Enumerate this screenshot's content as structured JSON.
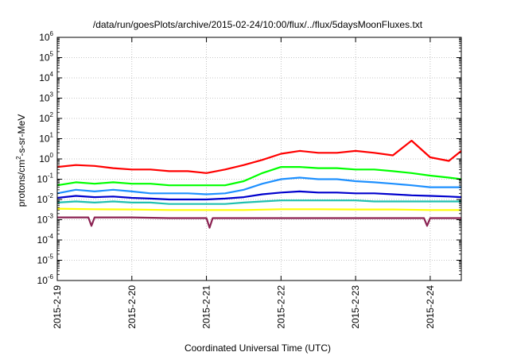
{
  "chart_data": {
    "type": "line",
    "title": "/data/run/goesPlots/archive/2015-02-24/10:00/flux/../flux/5daysMoonFluxes.txt",
    "xlabel": "Coordinated Universal Time (UTC)",
    "ylabel": "protons/cm²-s-sr-MeV",
    "ylabel_parts": {
      "pre": "protons/cm",
      "sup": "2",
      "post": "-s-sr-MeV"
    },
    "y_scale": "log",
    "ylim": [
      1e-06,
      1000000.0
    ],
    "y_ticks": [
      {
        "base": "10",
        "exp": "-6",
        "value": 1e-06
      },
      {
        "base": "10",
        "exp": "-5",
        "value": 1e-05
      },
      {
        "base": "10",
        "exp": "-4",
        "value": 0.0001
      },
      {
        "base": "10",
        "exp": "-3",
        "value": 0.001
      },
      {
        "base": "10",
        "exp": "-2",
        "value": 0.01
      },
      {
        "base": "10",
        "exp": "-1",
        "value": 0.1
      },
      {
        "base": "10",
        "exp": "0",
        "value": 1
      },
      {
        "base": "10",
        "exp": "1",
        "value": 10
      },
      {
        "base": "10",
        "exp": "2",
        "value": 100
      },
      {
        "base": "10",
        "exp": "3",
        "value": 1000
      },
      {
        "base": "10",
        "exp": "4",
        "value": 10000
      },
      {
        "base": "10",
        "exp": "5",
        "value": 100000
      },
      {
        "base": "10",
        "exp": "6",
        "value": 1000000
      }
    ],
    "xlim": [
      "2015-02-19T00:00",
      "2015-02-24T10:00"
    ],
    "x_ticks": [
      "2015-2-19",
      "2015-2-20",
      "2015-2-21",
      "2015-2-22",
      "2015-2-23",
      "2015-2-24"
    ],
    "grid": true,
    "series": [
      {
        "color": "#ff0000",
        "x": [
          "2015-02-19T00:00",
          "2015-02-19T06:00",
          "2015-02-19T12:00",
          "2015-02-19T18:00",
          "2015-02-20T00:00",
          "2015-02-20T06:00",
          "2015-02-20T12:00",
          "2015-02-20T18:00",
          "2015-02-21T00:00",
          "2015-02-21T06:00",
          "2015-02-21T12:00",
          "2015-02-21T18:00",
          "2015-02-22T00:00",
          "2015-02-22T06:00",
          "2015-02-22T12:00",
          "2015-02-22T18:00",
          "2015-02-23T00:00",
          "2015-02-23T06:00",
          "2015-02-23T12:00",
          "2015-02-23T18:00",
          "2015-02-24T00:00",
          "2015-02-24T06:00",
          "2015-02-24T10:00"
        ],
        "values": [
          0.4,
          0.5,
          0.45,
          0.35,
          0.3,
          0.3,
          0.25,
          0.25,
          0.2,
          0.3,
          0.5,
          0.9,
          1.8,
          2.5,
          2.0,
          2.0,
          2.5,
          2.0,
          1.5,
          8.0,
          1.2,
          0.8,
          2.5
        ]
      },
      {
        "color": "#00ff00",
        "x": [
          "2015-02-19T00:00",
          "2015-02-19T06:00",
          "2015-02-19T12:00",
          "2015-02-19T18:00",
          "2015-02-20T00:00",
          "2015-02-20T06:00",
          "2015-02-20T12:00",
          "2015-02-20T18:00",
          "2015-02-21T00:00",
          "2015-02-21T06:00",
          "2015-02-21T12:00",
          "2015-02-21T18:00",
          "2015-02-22T00:00",
          "2015-02-22T06:00",
          "2015-02-22T12:00",
          "2015-02-22T18:00",
          "2015-02-23T00:00",
          "2015-02-23T06:00",
          "2015-02-23T12:00",
          "2015-02-23T18:00",
          "2015-02-24T00:00",
          "2015-02-24T06:00",
          "2015-02-24T10:00"
        ],
        "values": [
          0.05,
          0.07,
          0.06,
          0.07,
          0.06,
          0.06,
          0.05,
          0.05,
          0.05,
          0.05,
          0.08,
          0.2,
          0.4,
          0.4,
          0.35,
          0.35,
          0.3,
          0.3,
          0.25,
          0.2,
          0.15,
          0.12,
          0.1
        ]
      },
      {
        "color": "#1e90ff",
        "x": [
          "2015-02-19T00:00",
          "2015-02-19T06:00",
          "2015-02-19T12:00",
          "2015-02-19T18:00",
          "2015-02-20T00:00",
          "2015-02-20T06:00",
          "2015-02-20T12:00",
          "2015-02-20T18:00",
          "2015-02-21T00:00",
          "2015-02-21T06:00",
          "2015-02-21T12:00",
          "2015-02-21T18:00",
          "2015-02-22T00:00",
          "2015-02-22T06:00",
          "2015-02-22T12:00",
          "2015-02-22T18:00",
          "2015-02-23T00:00",
          "2015-02-23T06:00",
          "2015-02-23T12:00",
          "2015-02-23T18:00",
          "2015-02-24T00:00",
          "2015-02-24T06:00",
          "2015-02-24T10:00"
        ],
        "values": [
          0.02,
          0.03,
          0.025,
          0.03,
          0.025,
          0.02,
          0.02,
          0.02,
          0.018,
          0.02,
          0.03,
          0.06,
          0.1,
          0.12,
          0.1,
          0.1,
          0.08,
          0.07,
          0.06,
          0.05,
          0.04,
          0.04,
          0.04
        ]
      },
      {
        "color": "#0000cd",
        "x": [
          "2015-02-19T00:00",
          "2015-02-19T06:00",
          "2015-02-19T12:00",
          "2015-02-19T18:00",
          "2015-02-20T00:00",
          "2015-02-20T06:00",
          "2015-02-20T12:00",
          "2015-02-20T18:00",
          "2015-02-21T00:00",
          "2015-02-21T06:00",
          "2015-02-21T12:00",
          "2015-02-21T18:00",
          "2015-02-22T00:00",
          "2015-02-22T06:00",
          "2015-02-22T12:00",
          "2015-02-22T18:00",
          "2015-02-23T00:00",
          "2015-02-23T06:00",
          "2015-02-23T12:00",
          "2015-02-23T18:00",
          "2015-02-24T00:00",
          "2015-02-24T06:00",
          "2015-02-24T10:00"
        ],
        "values": [
          0.012,
          0.015,
          0.013,
          0.014,
          0.012,
          0.011,
          0.01,
          0.01,
          0.01,
          0.011,
          0.013,
          0.018,
          0.022,
          0.025,
          0.022,
          0.022,
          0.02,
          0.02,
          0.018,
          0.016,
          0.015,
          0.014,
          0.013
        ]
      },
      {
        "color": "#20c0b0",
        "x": [
          "2015-02-19T00:00",
          "2015-02-19T06:00",
          "2015-02-19T12:00",
          "2015-02-19T18:00",
          "2015-02-20T00:00",
          "2015-02-20T06:00",
          "2015-02-20T12:00",
          "2015-02-20T18:00",
          "2015-02-21T00:00",
          "2015-02-21T06:00",
          "2015-02-21T12:00",
          "2015-02-21T18:00",
          "2015-02-22T00:00",
          "2015-02-22T06:00",
          "2015-02-22T12:00",
          "2015-02-22T18:00",
          "2015-02-23T00:00",
          "2015-02-23T06:00",
          "2015-02-23T12:00",
          "2015-02-23T18:00",
          "2015-02-24T00:00",
          "2015-02-24T06:00",
          "2015-02-24T10:00"
        ],
        "values": [
          0.007,
          0.008,
          0.007,
          0.008,
          0.007,
          0.007,
          0.006,
          0.006,
          0.006,
          0.006,
          0.007,
          0.008,
          0.009,
          0.009,
          0.009,
          0.009,
          0.009,
          0.008,
          0.008,
          0.008,
          0.008,
          0.008,
          0.008
        ]
      },
      {
        "color": "#ffff00",
        "x": [
          "2015-02-19T00:00",
          "2015-02-19T12:00",
          "2015-02-20T00:00",
          "2015-02-20T12:00",
          "2015-02-21T00:00",
          "2015-02-21T12:00",
          "2015-02-22T00:00",
          "2015-02-22T12:00",
          "2015-02-23T00:00",
          "2015-02-23T12:00",
          "2015-02-24T00:00",
          "2015-02-24T10:00"
        ],
        "values": [
          0.0035,
          0.0033,
          0.0032,
          0.003,
          0.003,
          0.003,
          0.0033,
          0.0033,
          0.0032,
          0.0032,
          0.003,
          0.003
        ]
      },
      {
        "color": "#8b2252",
        "x": [
          "2015-02-19T00:00",
          "2015-02-19T10:00",
          "2015-02-19T11:00",
          "2015-02-19T12:00",
          "2015-02-20T00:00",
          "2015-02-20T12:00",
          "2015-02-21T00:00",
          "2015-02-21T01:00",
          "2015-02-21T02:00",
          "2015-02-21T12:00",
          "2015-02-22T00:00",
          "2015-02-22T12:00",
          "2015-02-23T00:00",
          "2015-02-23T12:00",
          "2015-02-23T22:00",
          "2015-02-23T23:00",
          "2015-02-24T00:00",
          "2015-02-24T10:00"
        ],
        "values": [
          0.0013,
          0.0013,
          0.0005,
          0.0013,
          0.0013,
          0.0012,
          0.0012,
          0.0004,
          0.0012,
          0.0012,
          0.0012,
          0.0012,
          0.0012,
          0.0012,
          0.0012,
          0.0005,
          0.0012,
          0.0012
        ]
      }
    ]
  }
}
